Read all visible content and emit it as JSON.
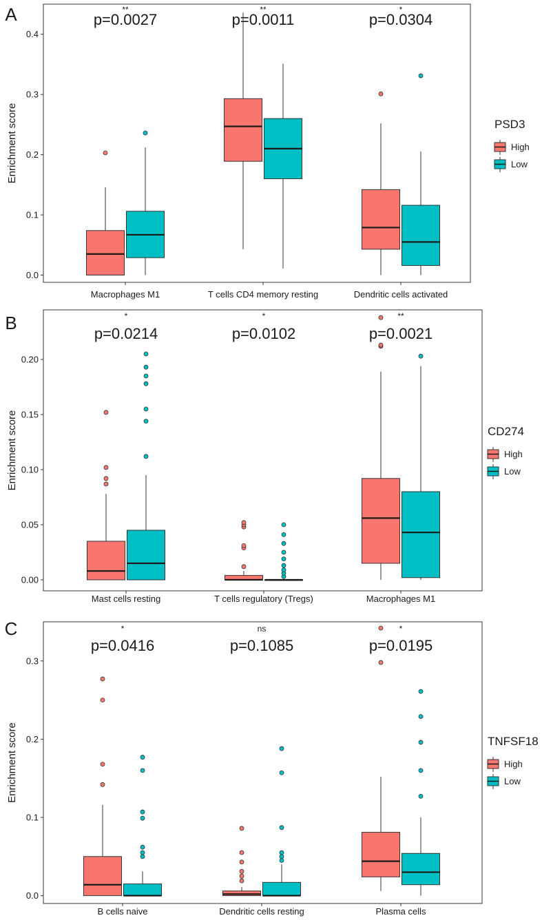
{
  "colors": {
    "high": "#F8766D",
    "low": "#00BFC4",
    "frame": "#333333",
    "median": "#1a1a1a"
  },
  "chart_data": [
    {
      "type": "box",
      "panel_label": "A",
      "ylabel": "Enrichment score",
      "ylim": [
        -0.012,
        0.45
      ],
      "yticks": [
        0.0,
        0.1,
        0.2,
        0.3,
        0.4
      ],
      "ytick_labels": [
        "0.0",
        "0.1",
        "0.2",
        "0.3",
        "0.4"
      ],
      "legend": {
        "title": "PSD3",
        "entries": [
          "High",
          "Low"
        ],
        "position": "right"
      },
      "categories": [
        "Macrophages M1",
        "T cells CD4 memory resting",
        "Dendritic cells activated"
      ],
      "pvalues": [
        "p=0.0027",
        "p=0.0011",
        "p=0.0304"
      ],
      "significance": [
        "**",
        "**",
        "*"
      ],
      "series": [
        {
          "name": "High",
          "boxes": [
            {
              "min": 0.0,
              "q1": 0.0,
              "median": 0.035,
              "q3": 0.074,
              "max": 0.146,
              "outliers": [
                0.203
              ]
            },
            {
              "min": 0.043,
              "q1": 0.189,
              "median": 0.247,
              "q3": 0.293,
              "max": 0.436,
              "outliers": []
            },
            {
              "min": 0.0,
              "q1": 0.043,
              "median": 0.079,
              "q3": 0.142,
              "max": 0.252,
              "outliers": [
                0.301
              ]
            }
          ]
        },
        {
          "name": "Low",
          "boxes": [
            {
              "min": 0.0,
              "q1": 0.029,
              "median": 0.067,
              "q3": 0.106,
              "max": 0.212,
              "outliers": [
                0.236
              ]
            },
            {
              "min": 0.011,
              "q1": 0.16,
              "median": 0.21,
              "q3": 0.26,
              "max": 0.351,
              "outliers": []
            },
            {
              "min": 0.0,
              "q1": 0.016,
              "median": 0.055,
              "q3": 0.116,
              "max": 0.205,
              "outliers": [
                0.331
              ]
            }
          ]
        }
      ]
    },
    {
      "type": "box",
      "panel_label": "B",
      "ylabel": "Enrichment score",
      "ylim": [
        -0.01,
        0.245
      ],
      "yticks": [
        0.0,
        0.05,
        0.1,
        0.15,
        0.2
      ],
      "ytick_labels": [
        "0.00",
        "0.05",
        "0.10",
        "0.15",
        "0.20"
      ],
      "legend": {
        "title": "CD274",
        "entries": [
          "High",
          "Low"
        ],
        "position": "right"
      },
      "categories": [
        "Mast cells resting",
        "T cells regulatory (Tregs)",
        "Macrophages M1"
      ],
      "pvalues": [
        "p=0.0214",
        "p=0.0102",
        "p=0.0021"
      ],
      "significance": [
        "*",
        "*",
        "**"
      ],
      "series": [
        {
          "name": "High",
          "boxes": [
            {
              "min": 0.0,
              "q1": 0.0,
              "median": 0.008,
              "q3": 0.035,
              "max": 0.078,
              "outliers": [
                0.087,
                0.092,
                0.102,
                0.152
              ]
            },
            {
              "min": 0.0,
              "q1": 0.0,
              "median": 0.0,
              "q3": 0.004,
              "max": 0.008,
              "outliers": [
                0.012,
                0.029,
                0.031,
                0.048,
                0.05,
                0.052
              ]
            },
            {
              "min": 0.0,
              "q1": 0.015,
              "median": 0.056,
              "q3": 0.092,
              "max": 0.189,
              "outliers": [
                0.212,
                0.213,
                0.238
              ]
            }
          ]
        },
        {
          "name": "Low",
          "boxes": [
            {
              "min": 0.0,
              "q1": 0.0,
              "median": 0.015,
              "q3": 0.045,
              "max": 0.095,
              "outliers": [
                0.112,
                0.144,
                0.155,
                0.178,
                0.185,
                0.193,
                0.205
              ]
            },
            {
              "min": 0.0,
              "q1": 0.0,
              "median": 0.0,
              "q3": 0.0,
              "max": 0.0,
              "outliers": [
                0.003,
                0.006,
                0.009,
                0.013,
                0.019,
                0.025,
                0.033,
                0.041,
                0.05
              ]
            },
            {
              "min": 0.0,
              "q1": 0.002,
              "median": 0.043,
              "q3": 0.08,
              "max": 0.194,
              "outliers": [
                0.203
              ]
            }
          ]
        }
      ]
    },
    {
      "type": "box",
      "panel_label": "C",
      "ylabel": "Enrichment score",
      "ylim": [
        -0.01,
        0.35
      ],
      "yticks": [
        0.0,
        0.1,
        0.2,
        0.3
      ],
      "ytick_labels": [
        "0.0",
        "0.1",
        "0.2",
        "0.3"
      ],
      "legend": {
        "title": "TNFSF18",
        "entries": [
          "High",
          "Low"
        ],
        "position": "right"
      },
      "categories": [
        "B cells naive",
        "Dendritic cells resting",
        "Plasma cells"
      ],
      "pvalues": [
        "p=0.0416",
        "p=0.1085",
        "p=0.0195"
      ],
      "significance": [
        "*",
        "ns",
        "*"
      ],
      "series": [
        {
          "name": "High",
          "boxes": [
            {
              "min": 0.0,
              "q1": 0.0,
              "median": 0.014,
              "q3": 0.05,
              "max": 0.116,
              "outliers": [
                0.142,
                0.168,
                0.25,
                0.277
              ]
            },
            {
              "min": 0.0,
              "q1": 0.0,
              "median": 0.002,
              "q3": 0.006,
              "max": 0.011,
              "outliers": [
                0.019,
                0.025,
                0.031,
                0.043,
                0.055,
                0.086
              ]
            },
            {
              "min": 0.006,
              "q1": 0.024,
              "median": 0.044,
              "q3": 0.081,
              "max": 0.152,
              "outliers": [
                0.298,
                0.342
              ]
            }
          ]
        },
        {
          "name": "Low",
          "boxes": [
            {
              "min": 0.0,
              "q1": 0.0,
              "median": 0.0,
              "q3": 0.015,
              "max": 0.031,
              "outliers": [
                0.05,
                0.055,
                0.062,
                0.099,
                0.107,
                0.16,
                0.177
              ]
            },
            {
              "min": 0.0,
              "q1": 0.0,
              "median": 0.0,
              "q3": 0.017,
              "max": 0.04,
              "outliers": [
                0.045,
                0.05,
                0.055,
                0.087,
                0.157,
                0.188
              ]
            },
            {
              "min": 0.0,
              "q1": 0.014,
              "median": 0.03,
              "q3": 0.054,
              "max": 0.1,
              "outliers": [
                0.127,
                0.16,
                0.196,
                0.229,
                0.261
              ]
            }
          ]
        }
      ]
    }
  ]
}
